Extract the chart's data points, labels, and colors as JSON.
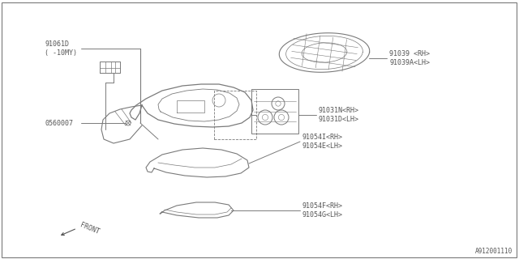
{
  "bg_color": "#ffffff",
  "line_color": "#7a7a7a",
  "text_color": "#555555",
  "font_size": 6.0,
  "diagram_id": "A912001110",
  "labels": {
    "part1": "91061D\n( -10MY)",
    "part2": "0560007",
    "part3": "91039 <RH>\n91039A<LH>",
    "part4": "91031N<RH>\n91031D<LH>",
    "part5": "91054I<RH>\n91054E<LH>",
    "part6": "91054F<RH>\n91054G<LH>",
    "front": "FRONT"
  }
}
